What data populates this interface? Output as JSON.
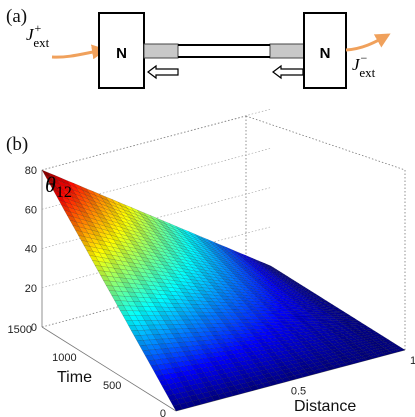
{
  "panel_a": {
    "label": "(a)",
    "left_block_label": "N",
    "right_block_label": "N",
    "left_current": {
      "symbol": "J",
      "sup": "+",
      "sub": "ext"
    },
    "right_current": {
      "symbol": "J",
      "sup": "−",
      "sub": "ext"
    },
    "colors": {
      "current_arrow": "#f0a15c",
      "contact": "#c8c8c8"
    }
  },
  "panel_b": {
    "label": "(b)",
    "z_axis_label": {
      "symbol": "θ",
      "sub": "12"
    },
    "time_axis_label": "Time",
    "distance_axis_label": "Distance",
    "colormap": "jet"
  },
  "chart_data": {
    "type": "surface",
    "title": "",
    "xlabel": "Distance",
    "ylabel": "Time",
    "zlabel": "θ12",
    "xlim": [
      0,
      1
    ],
    "ylim": [
      0,
      1500
    ],
    "zlim": [
      0,
      80
    ],
    "x_ticks": [
      "0",
      "0.5",
      "1"
    ],
    "y_ticks": [
      "0",
      "500",
      "1000",
      "1500"
    ],
    "z_ticks": [
      "0",
      "20",
      "40",
      "60",
      "80"
    ],
    "x": [
      0,
      0.1,
      0.2,
      0.3,
      0.4,
      0.5,
      0.6,
      0.7,
      0.8,
      0.9,
      1.0
    ],
    "y": [
      0,
      150,
      300,
      450,
      600,
      750,
      900,
      1050,
      1200,
      1350,
      1500
    ],
    "z": [
      [
        0,
        0,
        0,
        0,
        0,
        0,
        0,
        0,
        0,
        0,
        0
      ],
      [
        8,
        7.2,
        6.4,
        5.6,
        4.8,
        4.0,
        3.2,
        2.4,
        1.6,
        0.8,
        0
      ],
      [
        16,
        14.4,
        12.8,
        11.2,
        9.6,
        8.0,
        6.4,
        4.8,
        3.2,
        1.6,
        0
      ],
      [
        24,
        21.6,
        19.2,
        16.8,
        14.4,
        12.0,
        9.6,
        7.2,
        4.8,
        2.4,
        0
      ],
      [
        32,
        28.8,
        25.6,
        22.4,
        19.2,
        16.0,
        12.8,
        9.6,
        6.4,
        3.2,
        0
      ],
      [
        40,
        36.0,
        32.0,
        28.0,
        24.0,
        20.0,
        16.0,
        12.0,
        8.0,
        4.0,
        0
      ],
      [
        48,
        43.2,
        38.4,
        33.6,
        28.8,
        24.0,
        19.2,
        14.4,
        9.6,
        4.8,
        0
      ],
      [
        56,
        50.4,
        44.8,
        39.2,
        33.6,
        28.0,
        22.4,
        16.8,
        11.2,
        5.6,
        0
      ],
      [
        64,
        57.6,
        51.2,
        44.8,
        38.4,
        32.0,
        25.6,
        19.2,
        12.8,
        6.4,
        0
      ],
      [
        72,
        64.8,
        57.6,
        50.4,
        43.2,
        36.0,
        28.8,
        21.6,
        14.4,
        7.2,
        0
      ],
      [
        80,
        72.0,
        64.0,
        56.0,
        48.0,
        40.0,
        32.0,
        24.0,
        16.0,
        8.0,
        0
      ]
    ]
  }
}
